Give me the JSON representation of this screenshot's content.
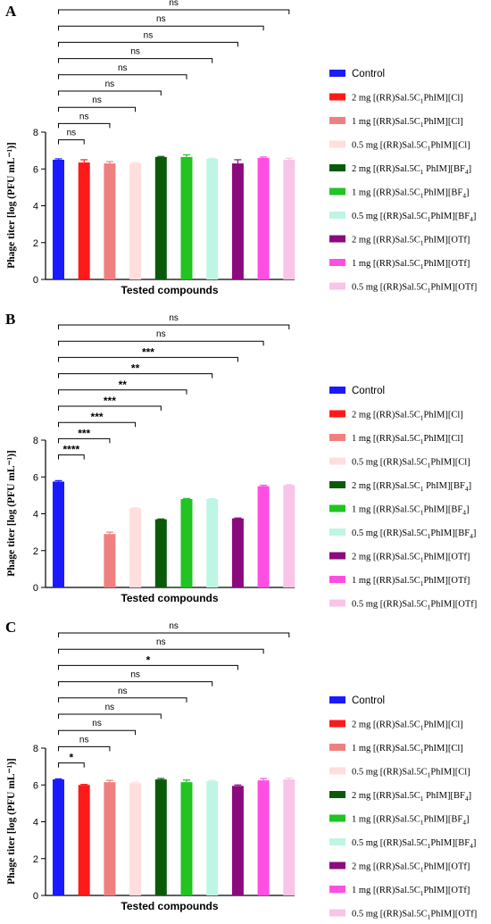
{
  "colors": {
    "Control": "#1a1aff",
    "2mg_Cl": "#ff1a1a",
    "1mg_Cl": "#f08080",
    "05mg_Cl": "#ffdede",
    "2mg_BF4": "#0b5a0b",
    "1mg_BF4": "#22c322",
    "05mg_BF4": "#bff5e4",
    "2mg_OTf": "#8b0a7e",
    "1mg_OTf": "#ff4fe3",
    "05mg_OTf": "#f8c4e8"
  },
  "legend_labels": [
    {
      "pre": "Control",
      "sub": "",
      "post": "",
      "sub2": "",
      "post2": ""
    },
    {
      "pre": "2 mg [(RR)Sal.5C",
      "sub": "1",
      "post": "PhIM][Cl]",
      "sub2": "",
      "post2": ""
    },
    {
      "pre": "1 mg [(RR)Sal.5C",
      "sub": "1",
      "post": "PhIM][Cl]",
      "sub2": "",
      "post2": ""
    },
    {
      "pre": "0.5 mg [(RR)Sal.5C",
      "sub": "1",
      "post": "PhIM][Cl]",
      "sub2": "",
      "post2": ""
    },
    {
      "pre": "2 mg [(RR)Sal.5C",
      "sub": "1",
      "post": " PhIM][BF",
      "sub2": "4",
      "post2": "]"
    },
    {
      "pre": "1 mg [(RR)Sal.5C",
      "sub": "1",
      "post": "PhIM][BF",
      "sub2": "4",
      "post2": "]"
    },
    {
      "pre": "0.5 mg [(RR)Sal.5C",
      "sub": "1",
      "post": "PhIM][BF",
      "sub2": "4",
      "post2": "]"
    },
    {
      "pre": "2 mg [(RR)Sal.5C",
      "sub": "1",
      "post": "PhIM][OTf]",
      "sub2": "",
      "post2": ""
    },
    {
      "pre": "1 mg [(RR)Sal.5C",
      "sub": "1",
      "post": "PhIM][OTf]",
      "sub2": "",
      "post2": ""
    },
    {
      "pre": "0.5 mg [(RR)Sal.5C",
      "sub": "1",
      "post": "PhIM][OTf]",
      "sub2": "",
      "post2": ""
    }
  ],
  "chart_data": [
    {
      "panel": "A",
      "type": "bar",
      "xlabel": "Tested compounds",
      "ylabel": "Phage titer [log (PFU mL⁻¹)]",
      "ylim": [
        0,
        8
      ],
      "yticks": [
        "0",
        "2",
        "4",
        "6",
        "8"
      ],
      "categories": [
        "Control",
        "2mg_Cl",
        "1mg_Cl",
        "05mg_Cl",
        "2mg_BF4",
        "1mg_BF4",
        "05mg_BF4",
        "2mg_OTf",
        "1mg_OTf",
        "05mg_OTf"
      ],
      "values": [
        6.5,
        6.35,
        6.3,
        6.3,
        6.65,
        6.65,
        6.55,
        6.3,
        6.6,
        6.5
      ],
      "errors": [
        0.05,
        0.15,
        0.1,
        0.05,
        0.03,
        0.12,
        0.03,
        0.2,
        0.05,
        0.08
      ],
      "significance": [
        "ns",
        "ns",
        "ns",
        "ns",
        "ns",
        "ns",
        "ns",
        "ns",
        "ns"
      ],
      "legend_style": "serif"
    },
    {
      "panel": "B",
      "type": "bar",
      "xlabel": "Tested compounds",
      "ylabel": "Phage titer [log (PFU mL⁻¹)]",
      "ylim": [
        0,
        8
      ],
      "yticks": [
        "0",
        "2",
        "4",
        "6",
        "8"
      ],
      "categories": [
        "Control",
        "2mg_Cl",
        "1mg_Cl",
        "05mg_Cl",
        "2mg_BF4",
        "1mg_BF4",
        "05mg_BF4",
        "2mg_OTf",
        "1mg_OTf",
        "05mg_OTf"
      ],
      "values": [
        5.75,
        0,
        2.9,
        4.3,
        3.7,
        4.8,
        4.8,
        3.75,
        5.5,
        5.55
      ],
      "errors": [
        0.05,
        0,
        0.1,
        0.02,
        0.02,
        0.03,
        0.02,
        0.02,
        0.05,
        0.03
      ],
      "significance": [
        "****",
        "***",
        "***",
        "***",
        "**",
        "**",
        "***",
        "ns",
        "ns"
      ],
      "legend_style": "sans-first"
    },
    {
      "panel": "C",
      "type": "bar",
      "xlabel": "Tested compounds",
      "ylabel": "Phage titer [log (PFU mL⁻¹)]",
      "ylim": [
        0,
        8
      ],
      "yticks": [
        "0",
        "2",
        "4",
        "6",
        "8"
      ],
      "categories": [
        "Control",
        "2mg_Cl",
        "1mg_Cl",
        "05mg_Cl",
        "2mg_BF4",
        "1mg_BF4",
        "05mg_BF4",
        "2mg_OTf",
        "1mg_OTf",
        "05mg_OTf"
      ],
      "values": [
        6.3,
        6.0,
        6.15,
        6.1,
        6.3,
        6.15,
        6.2,
        5.95,
        6.25,
        6.3
      ],
      "errors": [
        0.03,
        0.03,
        0.1,
        0.05,
        0.05,
        0.12,
        0.05,
        0.05,
        0.1,
        0.08
      ],
      "significance": [
        "*",
        "ns",
        "ns",
        "ns",
        "ns",
        "ns",
        "*",
        "ns",
        "ns"
      ],
      "legend_style": "sans-first"
    }
  ]
}
